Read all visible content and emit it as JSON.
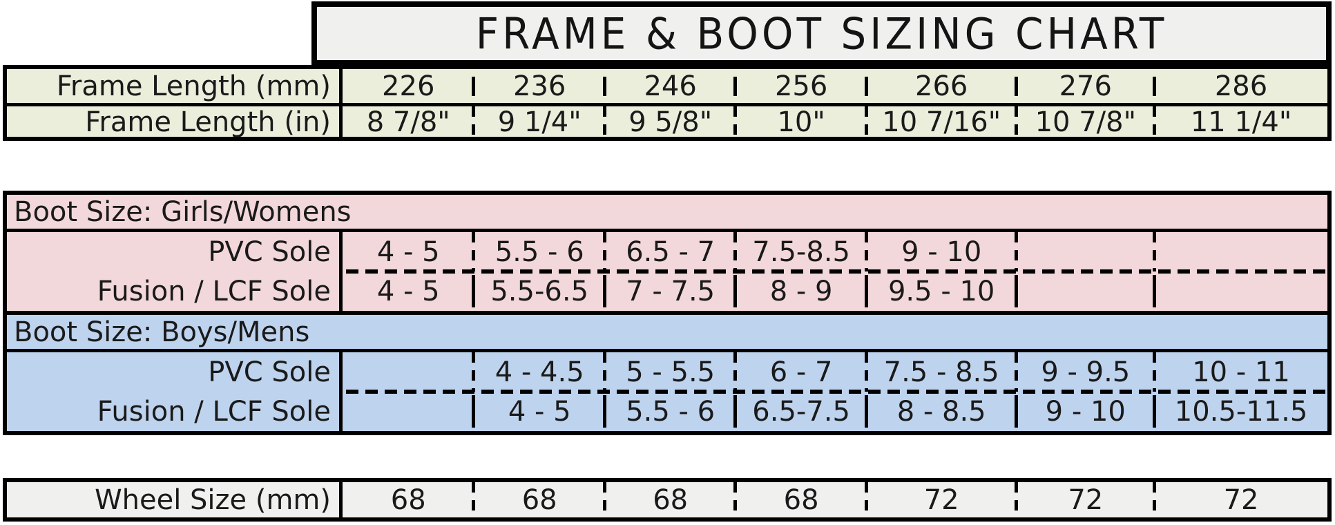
{
  "title": "FRAME & BOOT SIZING CHART",
  "frame_length": {
    "mm": {
      "label": "Frame Length (mm)",
      "values": [
        "226",
        "236",
        "246",
        "256",
        "266",
        "276",
        "286"
      ]
    },
    "inches": {
      "label": "Frame Length (in)",
      "values": [
        "8 7/8\"",
        "9 1/4\"",
        "9 5/8\"",
        "10\"",
        "10 7/16\"",
        "10 7/8\"",
        "11 1/4\""
      ]
    }
  },
  "girls_womens": {
    "header": "Boot Size: Girls/Womens",
    "pvc": {
      "label": "PVC Sole",
      "values": [
        "4 - 5",
        "5.5 - 6",
        "6.5 - 7",
        "7.5-8.5",
        "9 - 10",
        "",
        ""
      ]
    },
    "fusion": {
      "label": "Fusion / LCF Sole",
      "values": [
        "4 - 5",
        "5.5-6.5",
        "7 - 7.5",
        "8 - 9",
        "9.5 - 10",
        "",
        ""
      ]
    }
  },
  "boys_mens": {
    "header": "Boot Size: Boys/Mens",
    "pvc": {
      "label": "PVC Sole",
      "values": [
        "",
        "4 - 4.5",
        "5 - 5.5",
        "6 - 7",
        "7.5 - 8.5",
        "9 - 9.5",
        "10 - 11"
      ]
    },
    "fusion": {
      "label": "Fusion / LCF Sole",
      "values": [
        "",
        "4 - 5",
        "5.5 - 6",
        "6.5-7.5",
        "8 - 8.5",
        "9 - 10",
        "10.5-11.5"
      ]
    }
  },
  "wheel_size": {
    "label": "Wheel Size (mm)",
    "values": [
      "68",
      "68",
      "68",
      "68",
      "72",
      "72",
      "72"
    ]
  },
  "colors": {
    "frame_rows_bg": "#eaeedb",
    "girls_section_bg": "#f3d8db",
    "boys_section_bg": "#bed3ee",
    "wheel_row_bg": "#f0f0ee",
    "title_bg": "#f0f0ee",
    "border": "#000000"
  }
}
